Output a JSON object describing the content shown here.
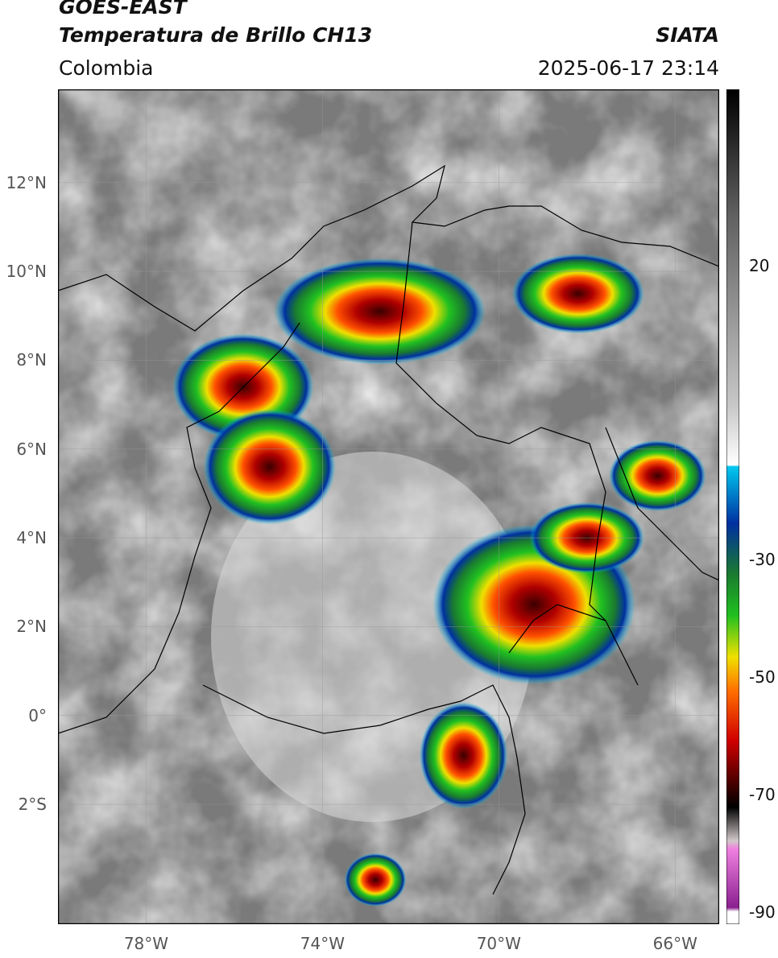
{
  "header": {
    "satellite": "GOES-EAST",
    "product": "Temperatura de Brillo CH13",
    "region": "Colombia",
    "agency": "SIATA",
    "timestamp": "2025-06-17 23:14"
  },
  "axes": {
    "lat_ticks": [
      {
        "label": "12°N",
        "value": 12
      },
      {
        "label": "10°N",
        "value": 10
      },
      {
        "label": "8°N",
        "value": 8
      },
      {
        "label": "6°N",
        "value": 6
      },
      {
        "label": "4°N",
        "value": 4
      },
      {
        "label": "2°N",
        "value": 2
      },
      {
        "label": "0°",
        "value": 0
      },
      {
        "label": "2°S",
        "value": -2
      }
    ],
    "lon_ticks": [
      {
        "label": "78°W",
        "value": -78
      },
      {
        "label": "74°W",
        "value": -74
      },
      {
        "label": "70°W",
        "value": -70
      },
      {
        "label": "66°W",
        "value": -66
      }
    ],
    "lon_range": [
      -80,
      -65
    ],
    "lat_range": [
      -4.7,
      14.1
    ],
    "grid": true
  },
  "colorbar": {
    "ticks": [
      {
        "label": "20",
        "value": 20
      },
      {
        "label": "-30",
        "value": -30
      },
      {
        "label": "-50",
        "value": -50
      },
      {
        "label": "-70",
        "value": -70
      },
      {
        "label": "-90",
        "value": -90
      }
    ],
    "range": [
      -92,
      50
    ],
    "unit_colors": {
      "warm_top": "#000000",
      "warm_mid": "#808080",
      "warm_low": "#ffffff",
      "cyan": "#00c8f0",
      "blue": "#0030a0",
      "green": "#20c020",
      "yellow": "#f0e000",
      "red": "#d00000",
      "dark_red": "#500000",
      "magenta": "#d040c0"
    }
  },
  "storms": [
    {
      "name": "storm-antioquia-north",
      "lon": -75.8,
      "lat": 7.4,
      "rx": 1.6,
      "ry": 1.2
    },
    {
      "name": "storm-antioquia-south",
      "lon": -75.2,
      "lat": 5.6,
      "rx": 1.5,
      "ry": 1.3
    },
    {
      "name": "storm-santander",
      "lon": -72.7,
      "lat": 9.1,
      "rx": 2.4,
      "ry": 1.2
    },
    {
      "name": "storm-venezuela-north",
      "lon": -68.2,
      "lat": 9.5,
      "rx": 1.5,
      "ry": 0.9
    },
    {
      "name": "storm-venezuela-east",
      "lon": -66.4,
      "lat": 5.4,
      "rx": 1.1,
      "ry": 0.8
    },
    {
      "name": "storm-guainia",
      "lon": -69.2,
      "lat": 2.5,
      "rx": 2.3,
      "ry": 1.8
    },
    {
      "name": "storm-vichada",
      "lon": -68.0,
      "lat": 4.0,
      "rx": 1.3,
      "ry": 0.8
    },
    {
      "name": "storm-amazonas",
      "lon": -70.8,
      "lat": -0.9,
      "rx": 1.0,
      "ry": 1.2
    },
    {
      "name": "storm-peru-south",
      "lon": -72.8,
      "lat": -3.7,
      "rx": 0.7,
      "ry": 0.6
    }
  ]
}
